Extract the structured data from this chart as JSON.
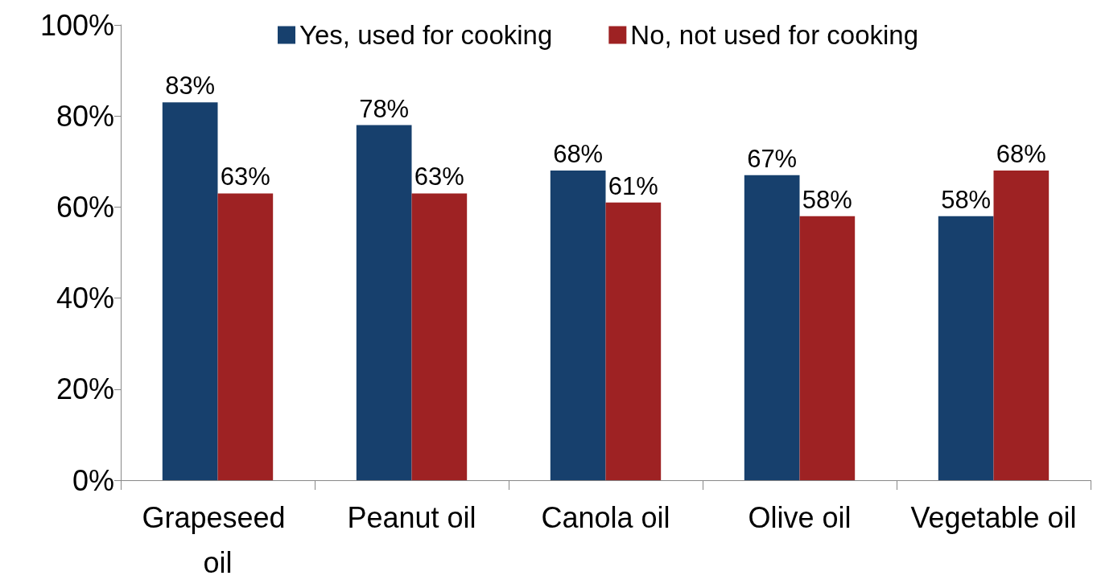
{
  "chart_data": {
    "type": "bar",
    "categories": [
      "Grapeseed oil",
      "Peanut oil",
      "Canola oil",
      "Olive oil",
      "Vegetable oil"
    ],
    "series": [
      {
        "name": "Yes, used for cooking",
        "color": "#17406d",
        "values": [
          83,
          78,
          68,
          67,
          58
        ],
        "value_labels": [
          "83%",
          "78%",
          "68%",
          "67%",
          "58%"
        ]
      },
      {
        "name": "No, not used for cooking",
        "color": "#9e2223",
        "values": [
          63,
          63,
          61,
          58,
          68
        ],
        "value_labels": [
          "63%",
          "63%",
          "61%",
          "58%",
          "68%"
        ]
      }
    ],
    "ylim": [
      0,
      100
    ],
    "yticks": [
      {
        "value": 0,
        "label": "0%"
      },
      {
        "value": 20,
        "label": "20%"
      },
      {
        "value": 40,
        "label": "40%"
      },
      {
        "value": 60,
        "label": "60%"
      },
      {
        "value": 80,
        "label": "80%"
      },
      {
        "value": 100,
        "label": "100%"
      }
    ],
    "grid": false,
    "legend": "top"
  }
}
